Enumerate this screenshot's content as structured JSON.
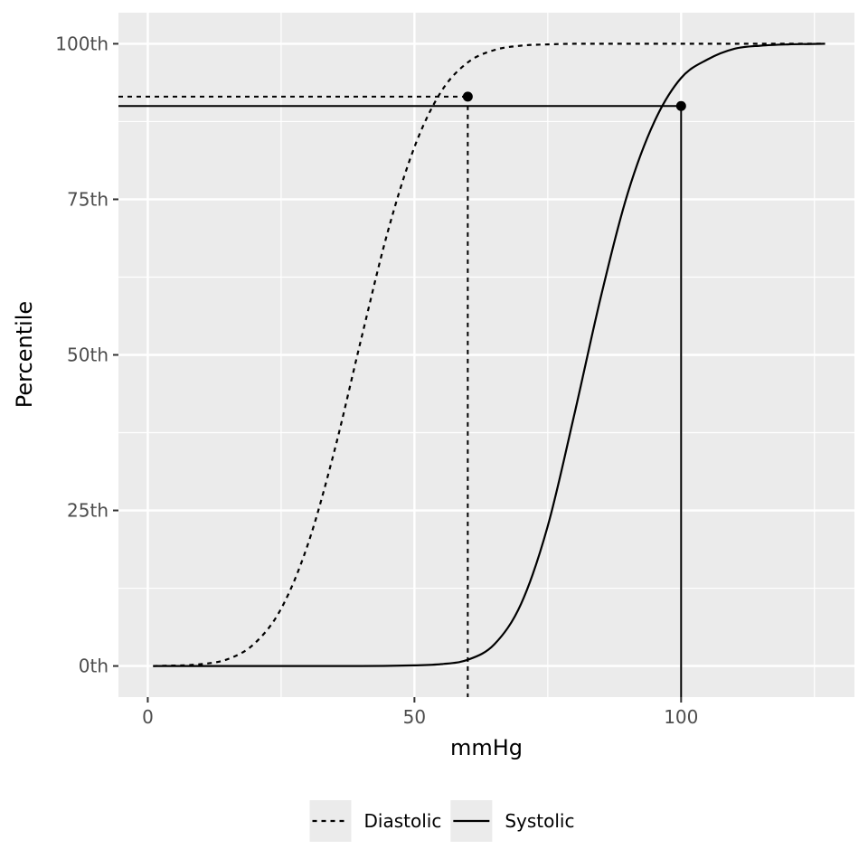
{
  "chart_data": {
    "type": "line",
    "xlabel": "mmHg",
    "ylabel": "Percentile",
    "xlim": [
      -5.5,
      132.5
    ],
    "ylim": [
      -5,
      105
    ],
    "x_ticks": [
      0,
      50,
      100
    ],
    "x_tick_labels": [
      "0",
      "50",
      "100"
    ],
    "y_ticks": [
      0,
      25,
      50,
      75,
      100
    ],
    "y_tick_labels": [
      "0th",
      "25th",
      "50th",
      "75th",
      "100th"
    ],
    "grid": true,
    "legend_position": "bottom",
    "series": [
      {
        "name": "Diastolic",
        "linetype": "dashed",
        "color": "#000000",
        "x": [
          1,
          10,
          15,
          20,
          25,
          30,
          35,
          40,
          45,
          50,
          55,
          60,
          65,
          70,
          75,
          80,
          90,
          100,
          110,
          127
        ],
        "y": [
          0,
          0.3,
          1.1,
          3.6,
          9.2,
          19.5,
          34.6,
          52.5,
          69.8,
          83.4,
          92.3,
          97.0,
          99.0,
          99.7,
          99.9,
          100,
          100,
          100,
          100,
          100
        ]
      },
      {
        "name": "Systolic",
        "linetype": "solid",
        "color": "#000000",
        "x": [
          1,
          40,
          50,
          55,
          60,
          65,
          70,
          75,
          80,
          85,
          90,
          95,
          100,
          105,
          110,
          115,
          120,
          127
        ],
        "y": [
          0,
          0,
          0.1,
          0.3,
          1.0,
          3.5,
          10.0,
          22.5,
          40.5,
          59.5,
          76.0,
          87.5,
          94.5,
          97.5,
          99.2,
          99.7,
          99.9,
          100
        ]
      }
    ],
    "reference_lines": [
      {
        "series": "Diastolic",
        "linetype": "dashed",
        "x": 60,
        "y": 91.5
      },
      {
        "series": "Systolic",
        "linetype": "solid",
        "x": 100,
        "y": 90
      }
    ],
    "legend": [
      {
        "label": "Diastolic",
        "linetype": "dashed"
      },
      {
        "label": "Systolic",
        "linetype": "solid"
      }
    ]
  }
}
